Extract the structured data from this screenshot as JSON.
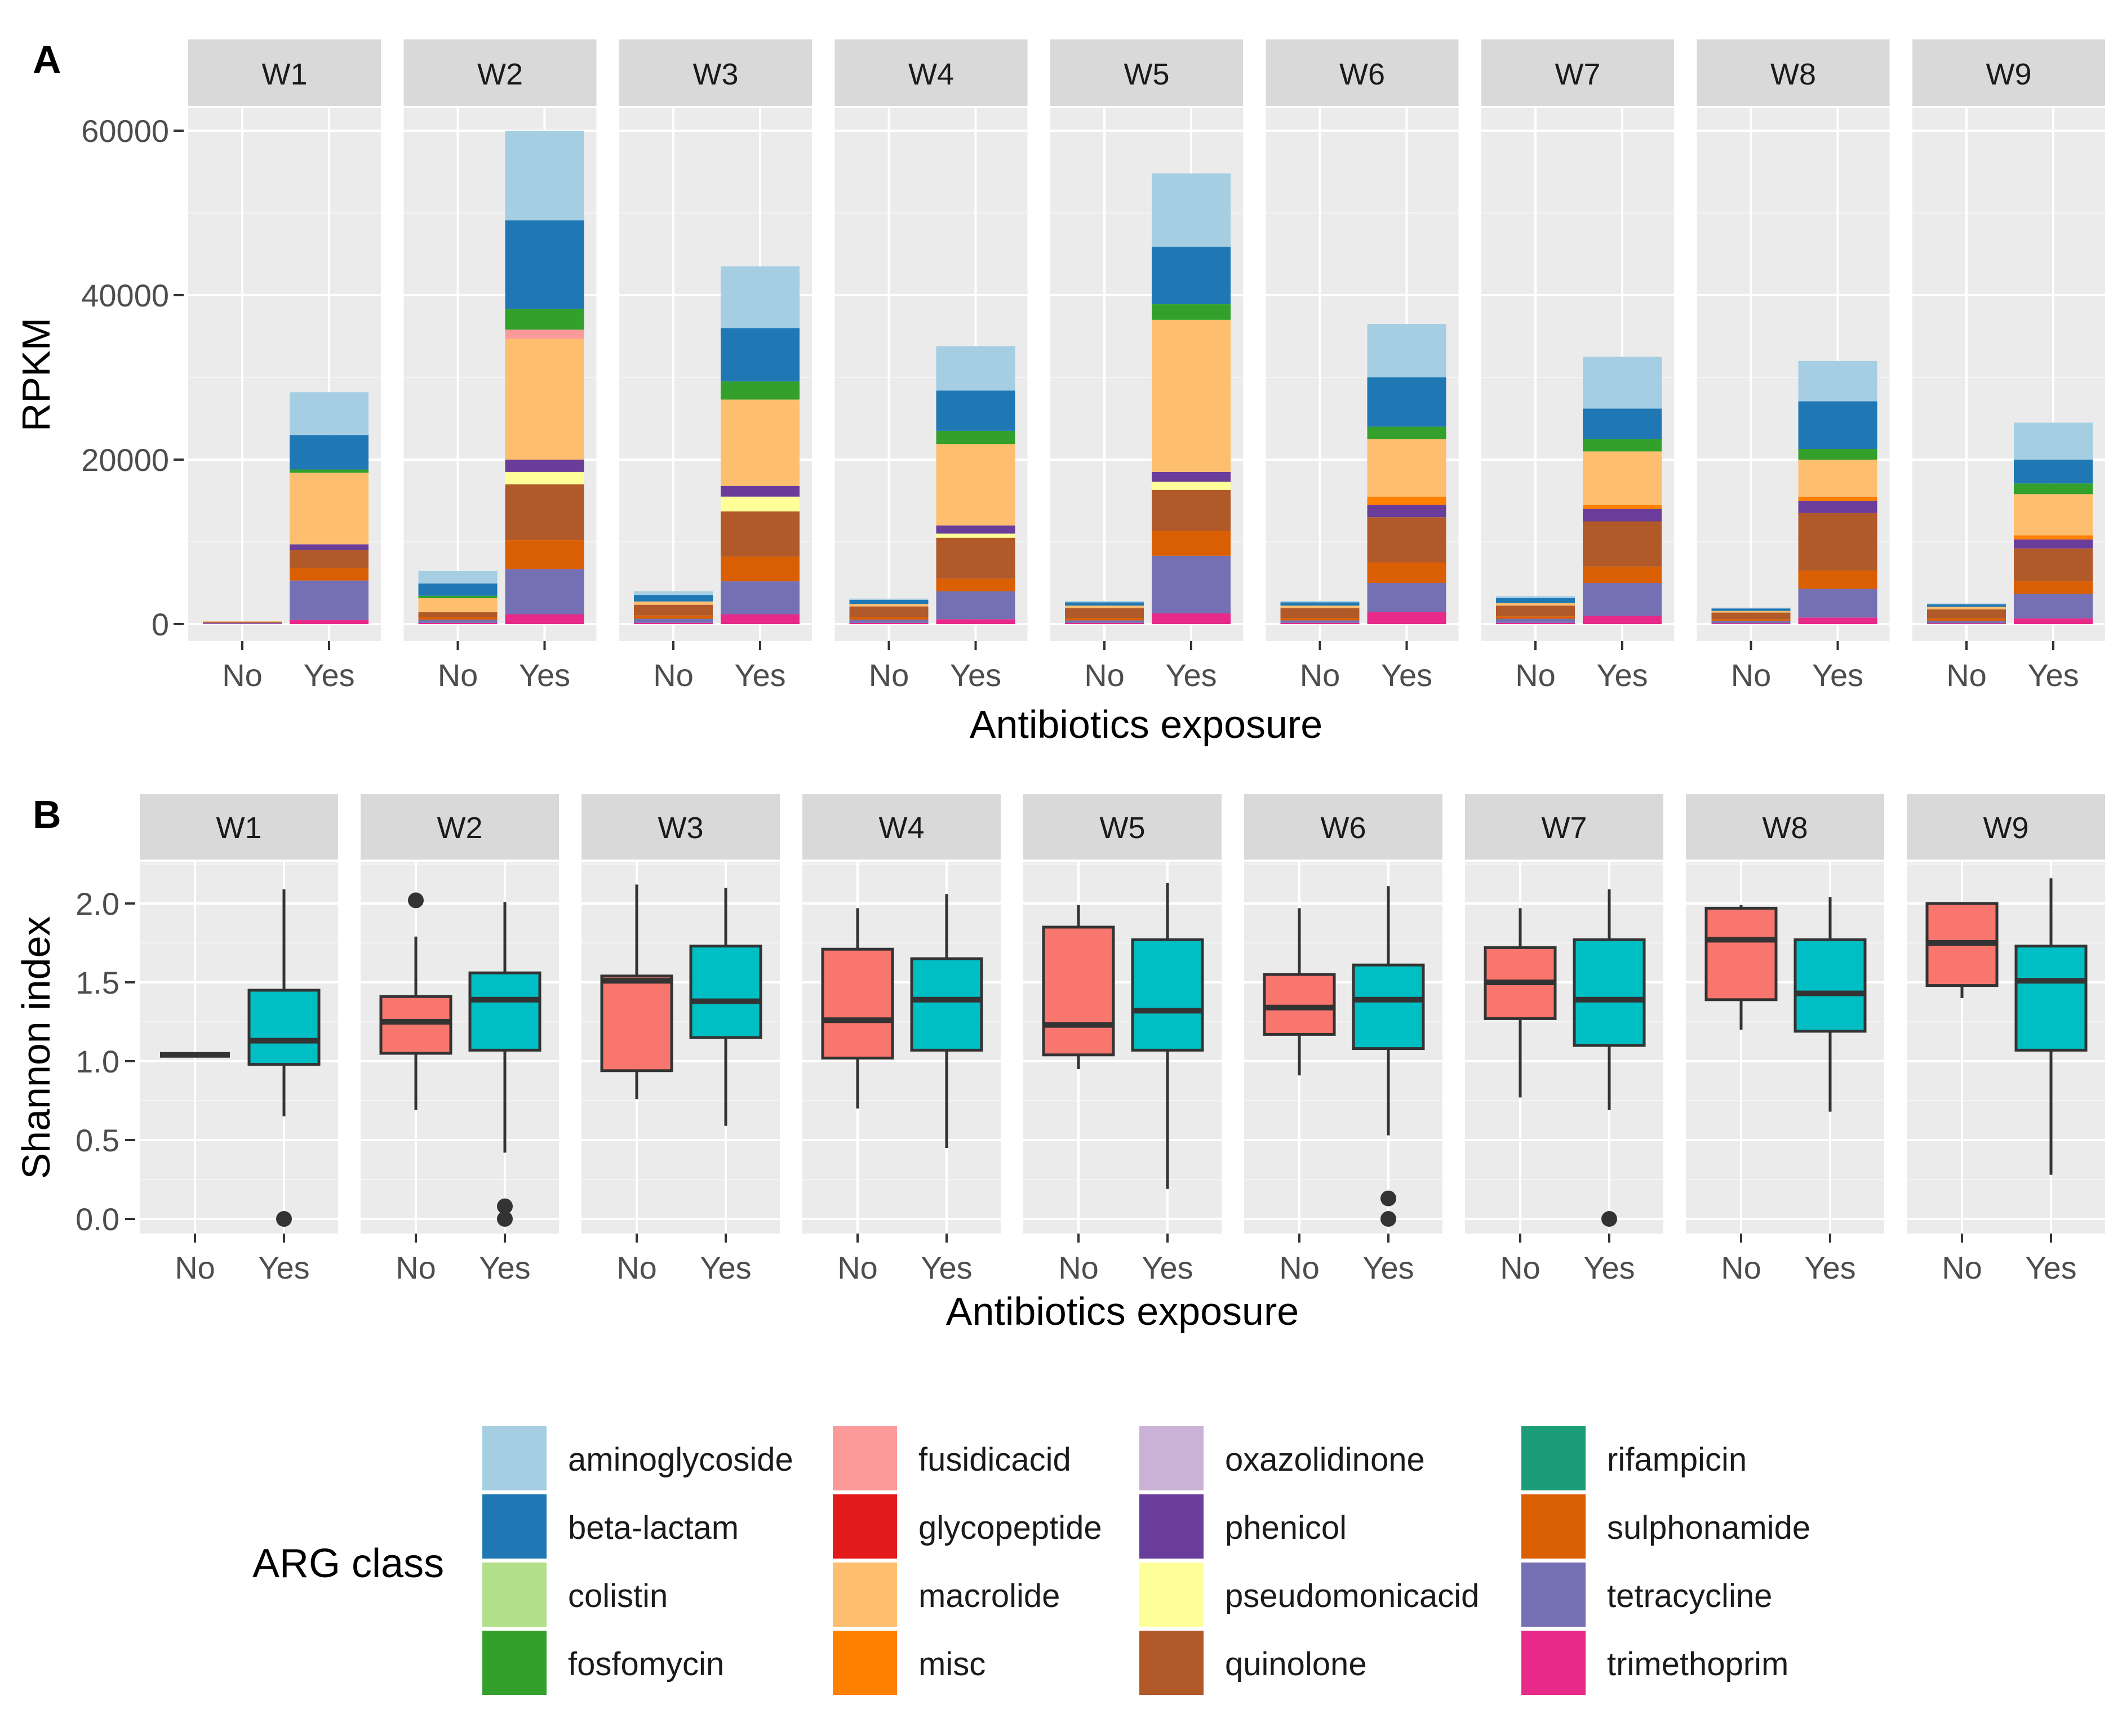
{
  "colors": {
    "panel_bg": "#EBEBEB",
    "strip_bg": "#D9D9D9",
    "grid_major": "#FFFFFF",
    "grid_minor": "#F4F4F4",
    "axis_text": "#4D4D4D",
    "title_text": "#000000",
    "box_no": "#F8766D",
    "box_yes": "#00BFC4",
    "box_line": "#333333"
  },
  "chart_data": [
    {
      "panel_label": "A",
      "type": "bar",
      "stacked": true,
      "facets": [
        "W1",
        "W2",
        "W3",
        "W4",
        "W5",
        "W6",
        "W7",
        "W8",
        "W9"
      ],
      "categories": [
        "No",
        "Yes"
      ],
      "xlabel": "Antibiotics exposure",
      "ylabel": "RPKM",
      "ylim": [
        0,
        62000
      ],
      "yticks": [
        0,
        20000,
        40000,
        60000
      ],
      "grid": true,
      "legend": "bottom",
      "series_order": [
        "trimethoprim",
        "tetracycline",
        "sulphonamide",
        "quinolone",
        "pseudomonicacid",
        "phenicol",
        "oxazolidinone",
        "misc",
        "macrolide",
        "glycopeptide",
        "fusidicacid",
        "fosfomycin",
        "colistin",
        "beta-lactam",
        "aminoglycoside",
        "rifampicin"
      ],
      "stacks": {
        "W1": {
          "No": {
            "trimethoprim": 50,
            "tetracycline": 120,
            "quinolone": 80,
            "sulphonamide": 40,
            "macrolide": 60,
            "aminoglycoside": 50
          },
          "Yes": {
            "trimethoprim": 500,
            "tetracycline": 4800,
            "sulphonamide": 1500,
            "quinolone": 2200,
            "phenicol": 700,
            "macrolide": 8700,
            "fosfomycin": 400,
            "beta-lactam": 4200,
            "aminoglycoside": 5200
          }
        },
        "W2": {
          "No": {
            "trimethoprim": 150,
            "tetracycline": 400,
            "sulphonamide": 300,
            "quinolone": 600,
            "macrolide": 1700,
            "fosfomycin": 300,
            "beta-lactam": 1500,
            "aminoglycoside": 1500
          },
          "Yes": {
            "trimethoprim": 1200,
            "tetracycline": 5500,
            "sulphonamide": 3500,
            "quinolone": 6800,
            "pseudomonicacid": 1500,
            "phenicol": 1500,
            "macrolide": 14700,
            "fusidicacid": 1100,
            "fosfomycin": 2500,
            "beta-lactam": 10800,
            "aminoglycoside": 10900
          }
        },
        "W3": {
          "No": {
            "trimethoprim": 150,
            "tetracycline": 500,
            "quinolone": 1300,
            "sulphonamide": 400,
            "macrolide": 400,
            "beta-lactam": 800,
            "aminoglycoside": 450
          },
          "Yes": {
            "trimethoprim": 1200,
            "tetracycline": 4000,
            "sulphonamide": 3000,
            "quinolone": 5500,
            "pseudomonicacid": 1800,
            "phenicol": 1300,
            "macrolide": 10500,
            "fosfomycin": 2200,
            "beta-lactam": 6500,
            "aminoglycoside": 7500
          }
        },
        "W4": {
          "No": {
            "trimethoprim": 150,
            "tetracycline": 400,
            "quinolone": 1300,
            "sulphonamide": 300,
            "macrolide": 300,
            "beta-lactam": 500,
            "aminoglycoside": 150
          },
          "Yes": {
            "trimethoprim": 600,
            "tetracycline": 3400,
            "sulphonamide": 1500,
            "quinolone": 5000,
            "pseudomonicacid": 500,
            "phenicol": 1000,
            "macrolide": 9900,
            "fosfomycin": 1600,
            "beta-lactam": 4900,
            "aminoglycoside": 5400
          }
        },
        "W5": {
          "No": {
            "trimethoprim": 150,
            "tetracycline": 300,
            "quinolone": 1200,
            "sulphonamide": 300,
            "macrolide": 300,
            "beta-lactam": 400,
            "aminoglycoside": 150
          },
          "Yes": {
            "trimethoprim": 1300,
            "tetracycline": 7000,
            "sulphonamide": 3000,
            "quinolone": 5000,
            "pseudomonicacid": 1000,
            "phenicol": 1200,
            "macrolide": 18500,
            "fosfomycin": 1900,
            "beta-lactam": 7000,
            "aminoglycoside": 8900
          }
        },
        "W6": {
          "No": {
            "trimethoprim": 150,
            "tetracycline": 300,
            "quinolone": 1200,
            "sulphonamide": 300,
            "macrolide": 300,
            "beta-lactam": 400,
            "aminoglycoside": 150
          },
          "Yes": {
            "trimethoprim": 1500,
            "tetracycline": 3500,
            "sulphonamide": 2500,
            "quinolone": 5500,
            "phenicol": 1500,
            "misc": 1000,
            "macrolide": 7000,
            "fosfomycin": 1500,
            "beta-lactam": 6000,
            "aminoglycoside": 6500
          }
        },
        "W7": {
          "No": {
            "trimethoprim": 150,
            "tetracycline": 500,
            "quinolone": 1300,
            "sulphonamide": 300,
            "macrolide": 300,
            "beta-lactam": 600,
            "aminoglycoside": 250
          },
          "Yes": {
            "trimethoprim": 1000,
            "tetracycline": 4000,
            "sulphonamide": 2000,
            "quinolone": 5500,
            "phenicol": 1500,
            "misc": 500,
            "macrolide": 6500,
            "fosfomycin": 1500,
            "beta-lactam": 3700,
            "aminoglycoside": 6300
          }
        },
        "W8": {
          "No": {
            "trimethoprim": 100,
            "tetracycline": 300,
            "quinolone": 800,
            "sulphonamide": 200,
            "macrolide": 200,
            "beta-lactam": 300,
            "aminoglycoside": 100
          },
          "Yes": {
            "trimethoprim": 800,
            "tetracycline": 3500,
            "sulphonamide": 2200,
            "quinolone": 7000,
            "phenicol": 1500,
            "misc": 500,
            "macrolide": 4500,
            "fosfomycin": 1300,
            "beta-lactam": 5800,
            "aminoglycoside": 4900
          }
        },
        "W9": {
          "No": {
            "trimethoprim": 100,
            "tetracycline": 300,
            "quinolone": 1100,
            "sulphonamide": 300,
            "macrolide": 300,
            "beta-lactam": 300,
            "aminoglycoside": 100
          },
          "Yes": {
            "trimethoprim": 700,
            "tetracycline": 3000,
            "sulphonamide": 1500,
            "quinolone": 4000,
            "phenicol": 1100,
            "misc": 500,
            "macrolide": 5000,
            "fosfomycin": 1300,
            "beta-lactam": 2900,
            "aminoglycoside": 4500
          }
        }
      }
    },
    {
      "panel_label": "B",
      "type": "box",
      "facets": [
        "W1",
        "W2",
        "W3",
        "W4",
        "W5",
        "W6",
        "W7",
        "W8",
        "W9"
      ],
      "categories": [
        "No",
        "Yes"
      ],
      "xlabel": "Antibiotics exposure",
      "ylabel": "Shannon index",
      "ylim": [
        -0.1,
        2.3
      ],
      "yticks": [
        0.0,
        0.5,
        1.0,
        1.5,
        2.0
      ],
      "ytick_labels": [
        "0.0",
        "0.5",
        "1.0",
        "1.5",
        "2.0"
      ],
      "grid": true,
      "boxes": {
        "W1": {
          "No": {
            "lower": 1.04,
            "q1": 1.04,
            "median": 1.04,
            "q3": 1.04,
            "upper": 1.04,
            "outliers": []
          },
          "Yes": {
            "lower": 0.65,
            "q1": 0.98,
            "median": 1.13,
            "q3": 1.45,
            "upper": 2.09,
            "outliers": [
              0.0
            ]
          }
        },
        "W2": {
          "No": {
            "lower": 0.69,
            "q1": 1.05,
            "median": 1.25,
            "q3": 1.41,
            "upper": 1.79,
            "outliers": [
              2.02
            ]
          },
          "Yes": {
            "lower": 0.42,
            "q1": 1.07,
            "median": 1.39,
            "q3": 1.56,
            "upper": 2.01,
            "outliers": [
              0.08,
              0.0
            ]
          }
        },
        "W3": {
          "No": {
            "lower": 0.76,
            "q1": 0.94,
            "median": 1.51,
            "q3": 1.54,
            "upper": 2.12,
            "outliers": []
          },
          "Yes": {
            "lower": 0.59,
            "q1": 1.15,
            "median": 1.38,
            "q3": 1.73,
            "upper": 2.1,
            "outliers": []
          }
        },
        "W4": {
          "No": {
            "lower": 0.7,
            "q1": 1.02,
            "median": 1.26,
            "q3": 1.71,
            "upper": 1.97,
            "outliers": []
          },
          "Yes": {
            "lower": 0.45,
            "q1": 1.07,
            "median": 1.39,
            "q3": 1.65,
            "upper": 2.06,
            "outliers": []
          }
        },
        "W5": {
          "No": {
            "lower": 0.95,
            "q1": 1.04,
            "median": 1.23,
            "q3": 1.85,
            "upper": 1.99,
            "outliers": []
          },
          "Yes": {
            "lower": 0.19,
            "q1": 1.07,
            "median": 1.32,
            "q3": 1.77,
            "upper": 2.13,
            "outliers": []
          }
        },
        "W6": {
          "No": {
            "lower": 0.91,
            "q1": 1.17,
            "median": 1.34,
            "q3": 1.55,
            "upper": 1.97,
            "outliers": []
          },
          "Yes": {
            "lower": 0.53,
            "q1": 1.08,
            "median": 1.39,
            "q3": 1.61,
            "upper": 2.11,
            "outliers": [
              0.13,
              0.0
            ]
          }
        },
        "W7": {
          "No": {
            "lower": 0.77,
            "q1": 1.27,
            "median": 1.5,
            "q3": 1.72,
            "upper": 1.97,
            "outliers": []
          },
          "Yes": {
            "lower": 0.69,
            "q1": 1.1,
            "median": 1.39,
            "q3": 1.77,
            "upper": 2.09,
            "outliers": [
              0.0
            ]
          }
        },
        "W8": {
          "No": {
            "lower": 1.2,
            "q1": 1.39,
            "median": 1.77,
            "q3": 1.97,
            "upper": 1.99,
            "outliers": []
          },
          "Yes": {
            "lower": 0.68,
            "q1": 1.19,
            "median": 1.43,
            "q3": 1.77,
            "upper": 2.04,
            "outliers": []
          }
        },
        "W9": {
          "No": {
            "lower": 1.4,
            "q1": 1.48,
            "median": 1.75,
            "q3": 2.0,
            "upper": 2.01,
            "outliers": []
          },
          "Yes": {
            "lower": 0.28,
            "q1": 1.07,
            "median": 1.51,
            "q3": 1.73,
            "upper": 2.16,
            "outliers": []
          }
        }
      }
    }
  ],
  "legend": {
    "title": "ARG class",
    "items": [
      {
        "name": "aminoglycoside",
        "color": "#A6CEE3"
      },
      {
        "name": "beta-lactam",
        "color": "#1F78B4"
      },
      {
        "name": "colistin",
        "color": "#B2DF8A"
      },
      {
        "name": "fosfomycin",
        "color": "#33A02C"
      },
      {
        "name": "fusidicacid",
        "color": "#FB9A99"
      },
      {
        "name": "glycopeptide",
        "color": "#E31A1C"
      },
      {
        "name": "macrolide",
        "color": "#FDBF6F"
      },
      {
        "name": "misc",
        "color": "#FF7F00"
      },
      {
        "name": "oxazolidinone",
        "color": "#CAB2D6"
      },
      {
        "name": "phenicol",
        "color": "#6A3D9A"
      },
      {
        "name": "pseudomonicacid",
        "color": "#FFFF99"
      },
      {
        "name": "quinolone",
        "color": "#B15928"
      },
      {
        "name": "rifampicin",
        "color": "#1B9E77"
      },
      {
        "name": "sulphonamide",
        "color": "#D95F02"
      },
      {
        "name": "tetracycline",
        "color": "#7570B3"
      },
      {
        "name": "trimethoprim",
        "color": "#E7298A"
      }
    ]
  }
}
